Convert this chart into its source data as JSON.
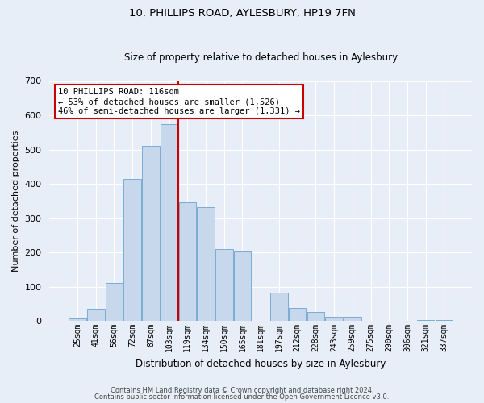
{
  "title": "10, PHILLIPS ROAD, AYLESBURY, HP19 7FN",
  "subtitle": "Size of property relative to detached houses in Aylesbury",
  "xlabel": "Distribution of detached houses by size in Aylesbury",
  "ylabel": "Number of detached properties",
  "bar_labels": [
    "25sqm",
    "41sqm",
    "56sqm",
    "72sqm",
    "87sqm",
    "103sqm",
    "119sqm",
    "134sqm",
    "150sqm",
    "165sqm",
    "181sqm",
    "197sqm",
    "212sqm",
    "228sqm",
    "243sqm",
    "259sqm",
    "275sqm",
    "290sqm",
    "306sqm",
    "321sqm",
    "337sqm"
  ],
  "bar_values": [
    8,
    35,
    112,
    415,
    510,
    575,
    345,
    332,
    210,
    203,
    0,
    82,
    37,
    26,
    12,
    13,
    0,
    0,
    0,
    3,
    3
  ],
  "bar_color": "#c8d8ec",
  "bar_edge_color": "#7aadd4",
  "vline_color": "#cc0000",
  "annotation_title": "10 PHILLIPS ROAD: 116sqm",
  "annotation_line1": "← 53% of detached houses are smaller (1,526)",
  "annotation_line2": "46% of semi-detached houses are larger (1,331) →",
  "annotation_box_color": "white",
  "annotation_box_edge_color": "#cc0000",
  "ylim": [
    0,
    700
  ],
  "yticks": [
    0,
    100,
    200,
    300,
    400,
    500,
    600,
    700
  ],
  "footer1": "Contains HM Land Registry data © Crown copyright and database right 2024.",
  "footer2": "Contains public sector information licensed under the Open Government Licence v3.0.",
  "bg_color": "#e8eef8",
  "grid_color": "#ffffff",
  "title_fontsize": 9.5,
  "subtitle_fontsize": 8.5
}
